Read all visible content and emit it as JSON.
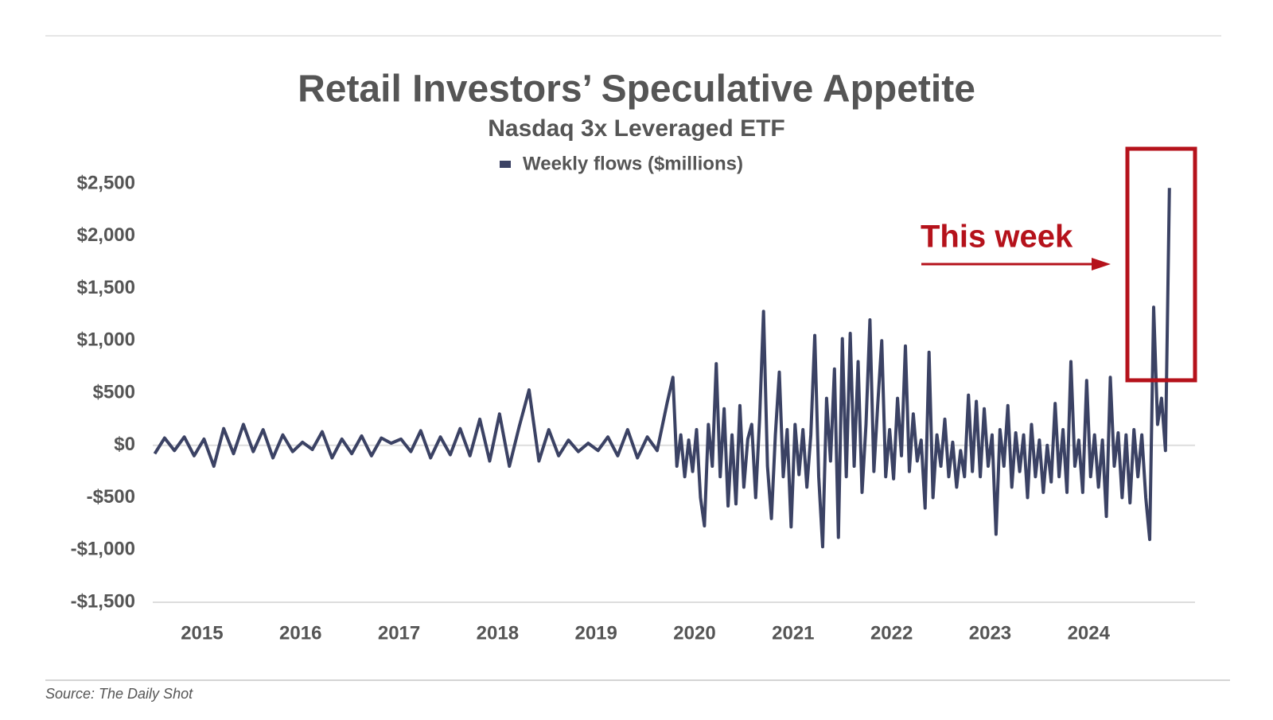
{
  "chart_data": {
    "type": "line",
    "title": "Retail Investors’ Speculative Appetite",
    "subtitle": "Nasdaq 3x Leveraged ETF",
    "source": "Source: The Daily Shot",
    "annotation": "This week",
    "x": [
      2014.52,
      2014.62,
      2014.72,
      2014.82,
      2014.92,
      2015.02,
      2015.12,
      2015.22,
      2015.32,
      2015.42,
      2015.52,
      2015.62,
      2015.72,
      2015.82,
      2015.92,
      2016.02,
      2016.12,
      2016.22,
      2016.32,
      2016.42,
      2016.52,
      2016.62,
      2016.72,
      2016.82,
      2016.92,
      2017.02,
      2017.12,
      2017.22,
      2017.32,
      2017.42,
      2017.52,
      2017.62,
      2017.72,
      2017.82,
      2017.92,
      2018.02,
      2018.12,
      2018.22,
      2018.32,
      2018.42,
      2018.52,
      2018.62,
      2018.72,
      2018.82,
      2018.92,
      2019.02,
      2019.12,
      2019.22,
      2019.32,
      2019.42,
      2019.52,
      2019.62,
      2019.72,
      2019.78,
      2019.82,
      2019.86,
      2019.9,
      2019.94,
      2019.98,
      2020.02,
      2020.06,
      2020.1,
      2020.14,
      2020.18,
      2020.22,
      2020.26,
      2020.3,
      2020.34,
      2020.38,
      2020.42,
      2020.46,
      2020.5,
      2020.54,
      2020.58,
      2020.62,
      2020.66,
      2020.7,
      2020.74,
      2020.78,
      2020.82,
      2020.86,
      2020.9,
      2020.94,
      2020.98,
      2021.02,
      2021.06,
      2021.1,
      2021.14,
      2021.18,
      2021.22,
      2021.26,
      2021.3,
      2021.34,
      2021.38,
      2021.42,
      2021.46,
      2021.5,
      2021.54,
      2021.58,
      2021.62,
      2021.66,
      2021.7,
      2021.74,
      2021.78,
      2021.82,
      2021.86,
      2021.9,
      2021.94,
      2021.98,
      2022.02,
      2022.06,
      2022.1,
      2022.14,
      2022.18,
      2022.22,
      2022.26,
      2022.3,
      2022.34,
      2022.38,
      2022.42,
      2022.46,
      2022.5,
      2022.54,
      2022.58,
      2022.62,
      2022.66,
      2022.7,
      2022.74,
      2022.78,
      2022.82,
      2022.86,
      2022.9,
      2022.94,
      2022.98,
      2023.02,
      2023.06,
      2023.1,
      2023.14,
      2023.18,
      2023.22,
      2023.26,
      2023.3,
      2023.34,
      2023.38,
      2023.42,
      2023.46,
      2023.5,
      2023.54,
      2023.58,
      2023.62,
      2023.66,
      2023.7,
      2023.74,
      2023.78,
      2023.82,
      2023.86,
      2023.9,
      2023.94,
      2023.98,
      2024.02,
      2024.06,
      2024.1,
      2024.14,
      2024.18,
      2024.22,
      2024.26,
      2024.3,
      2024.34,
      2024.38,
      2024.42,
      2024.46,
      2024.5,
      2024.54,
      2024.58,
      2024.62,
      2024.66,
      2024.7,
      2024.74,
      2024.78,
      2024.82
    ],
    "series": [
      {
        "name": "Weekly flows ($millions)",
        "color": "#3b4264",
        "values": [
          -80,
          70,
          -50,
          80,
          -100,
          60,
          -200,
          160,
          -80,
          200,
          -60,
          150,
          -120,
          100,
          -60,
          30,
          -40,
          130,
          -120,
          60,
          -80,
          90,
          -100,
          70,
          20,
          60,
          -60,
          140,
          -120,
          80,
          -90,
          160,
          -100,
          250,
          -150,
          300,
          -200,
          180,
          530,
          -150,
          150,
          -100,
          50,
          -60,
          20,
          -50,
          80,
          -100,
          150,
          -120,
          80,
          -50,
          400,
          650,
          -200,
          100,
          -300,
          50,
          -250,
          150,
          -500,
          -770,
          200,
          -200,
          780,
          -300,
          350,
          -580,
          100,
          -560,
          380,
          -400,
          60,
          200,
          -500,
          250,
          1280,
          -200,
          -700,
          100,
          700,
          -300,
          150,
          -780,
          200,
          -280,
          150,
          -400,
          100,
          1050,
          -300,
          -970,
          450,
          -150,
          730,
          -880,
          1020,
          -300,
          1070,
          -200,
          800,
          -450,
          200,
          1200,
          -250,
          400,
          1000,
          -300,
          150,
          -320,
          450,
          -100,
          950,
          -250,
          300,
          -150,
          50,
          -600,
          890,
          -500,
          100,
          -200,
          250,
          -300,
          30,
          -400,
          -50,
          -300,
          480,
          -250,
          420,
          -300,
          350,
          -200,
          100,
          -850,
          150,
          -200,
          380,
          -400,
          120,
          -250,
          100,
          -500,
          200,
          -300,
          50,
          -450,
          0,
          -350,
          400,
          -300,
          150,
          -450,
          800,
          -200,
          50,
          -450,
          620,
          -300,
          100,
          -400,
          50,
          -680,
          650,
          -200,
          120,
          -500,
          100,
          -550,
          150,
          -300,
          100,
          -500,
          -900,
          1320,
          200,
          450,
          -50,
          2460
        ]
      }
    ],
    "xlim": [
      2014.5,
      2025.08
    ],
    "xticks": [
      2015,
      2016,
      2017,
      2018,
      2019,
      2020,
      2021,
      2022,
      2023,
      2024
    ],
    "ylim": [
      -1500,
      2500
    ],
    "yticks": [
      {
        "value": -1500,
        "label": "-$1,500"
      },
      {
        "value": -1000,
        "label": "-$1,000"
      },
      {
        "value": -500,
        "label": "-$500"
      },
      {
        "value": 0,
        "label": "$0"
      },
      {
        "value": 500,
        "label": "$500"
      },
      {
        "value": 1000,
        "label": "$1,000"
      },
      {
        "value": 1500,
        "label": "$1,500"
      },
      {
        "value": 2000,
        "label": "$2,000"
      },
      {
        "value": 2500,
        "label": "$2,500"
      }
    ],
    "grid": false,
    "annotation_color": "#b5121b"
  }
}
